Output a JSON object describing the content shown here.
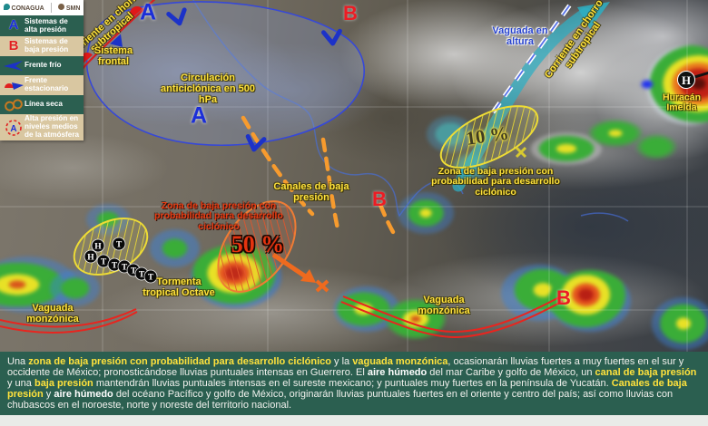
{
  "legend": {
    "logos": {
      "conagua": "CONAGUA",
      "smn": "SMN"
    },
    "items": [
      {
        "symbol": "high-pressure-letter",
        "label": "Sistemas de alta presión"
      },
      {
        "symbol": "low-pressure-letter",
        "label": "Sistemas de baja presión"
      },
      {
        "symbol": "cold-front",
        "label": "Frente frío"
      },
      {
        "symbol": "stationary-front",
        "label": "Frente estacionario"
      },
      {
        "symbol": "dry-line",
        "label": "Línea seca"
      },
      {
        "symbol": "mid-level-high",
        "label": "Alta presión en niveles medios de la atmósfera"
      }
    ]
  },
  "map": {
    "letters": {
      "high": "A",
      "low": "B",
      "hurricane": "H"
    },
    "labels": {
      "jet": "Corriente en chorro subtropical",
      "frontal_system": "Sistema frontal",
      "anticyclone_500": "Circulación anticiclónica en 500 hPa",
      "upper_trough": "Vaguada en altura",
      "hurricane_name": "Huracán Imelda",
      "low_dev_zone": "Zona de baja presión con probabilidad para desarrollo ciclónico",
      "prob_10": "10 %",
      "prob_50": "50 %",
      "low_channels": "Canales de baja presión",
      "tropical_storm": "Tormenta tropical Octave",
      "monsoon_trough": "Vaguada monzónica"
    },
    "track_symbols": [
      "H",
      "T",
      "H",
      "T",
      "T",
      "T",
      "T",
      "T",
      "T"
    ]
  },
  "colors": {
    "legend_green": "#2b5f50",
    "legend_tan": "#d9c7a1",
    "label_yellow": "#ffe23c",
    "front_red": "#e02020",
    "front_blue": "#1c32c8",
    "channel_orange": "#f79b2e",
    "trough_red": "#e8251f",
    "jet_teal": "#2db4c6"
  },
  "footer": {
    "segments": [
      {
        "text": "Una ",
        "style": "plain"
      },
      {
        "text": "zona de baja presión con probabilidad para desarrollo ciclónico",
        "style": "hl"
      },
      {
        "text": " y la ",
        "style": "plain"
      },
      {
        "text": "vaguada monzónica",
        "style": "hl"
      },
      {
        "text": ", ocasionarán lluvias fuertes a muy fuertes en el sur y occidente de México; pronosticándose lluvias puntuales intensas en Guerrero. El ",
        "style": "plain"
      },
      {
        "text": "aire húmedo",
        "style": "bold"
      },
      {
        "text": " del mar Caribe y golfo de México, un ",
        "style": "plain"
      },
      {
        "text": "canal de baja presión",
        "style": "hl"
      },
      {
        "text": " y una ",
        "style": "plain"
      },
      {
        "text": "baja presión",
        "style": "hl"
      },
      {
        "text": " mantendrán lluvias puntuales intensas en el sureste mexicano; y puntuales muy fuertes en la península de Yucatán. ",
        "style": "plain"
      },
      {
        "text": "Canales de baja presión",
        "style": "hl"
      },
      {
        "text": " y ",
        "style": "plain"
      },
      {
        "text": "aire húmedo",
        "style": "bold"
      },
      {
        "text": " del océano Pacífico y golfo de México, originarán lluvias puntuales fuertes en el oriente y centro del país; así como lluvias con chubascos en el noroeste, norte y noreste del territorio nacional.",
        "style": "plain"
      }
    ]
  }
}
